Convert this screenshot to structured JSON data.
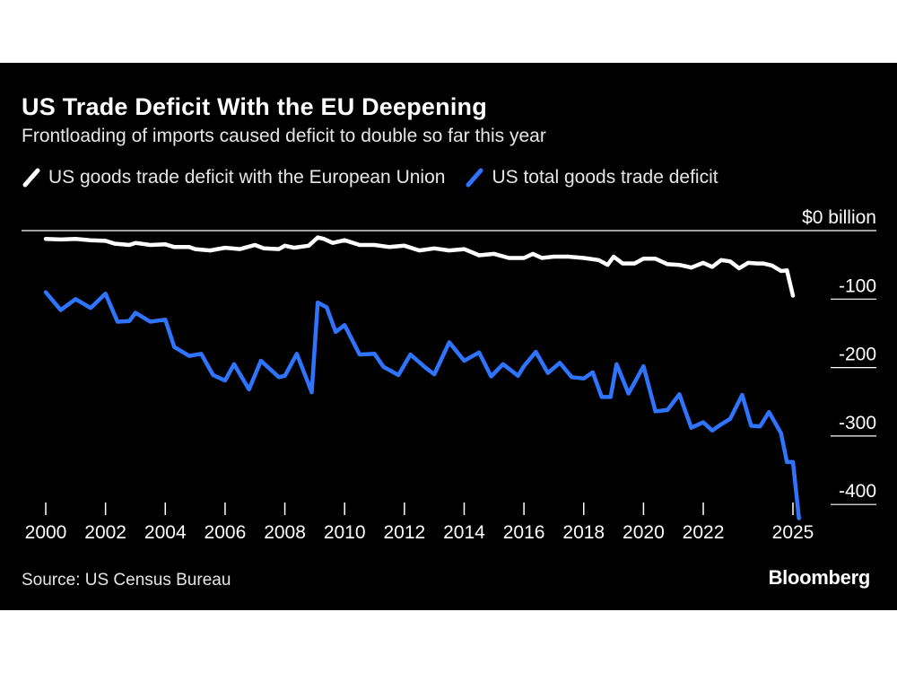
{
  "chart_data": {
    "type": "line",
    "title": "US Trade Deficit With the EU Deepening",
    "subtitle": "Frontloading of imports caused deficit to double so far this year",
    "y_unit_label": "$0 billion",
    "ylim": [
      -400,
      0
    ],
    "xlim": [
      2000,
      2025
    ],
    "y_ticks": [
      {
        "value": 0,
        "label": "$0 billion"
      },
      {
        "value": -100,
        "label": "-100"
      },
      {
        "value": -200,
        "label": "-200"
      },
      {
        "value": -300,
        "label": "-300"
      },
      {
        "value": -400,
        "label": "-400"
      }
    ],
    "x_ticks": [
      {
        "value": 2000,
        "label": "2000"
      },
      {
        "value": 2002,
        "label": "2002"
      },
      {
        "value": 2004,
        "label": "2004"
      },
      {
        "value": 2006,
        "label": "2006"
      },
      {
        "value": 2008,
        "label": "2008"
      },
      {
        "value": 2010,
        "label": "2010"
      },
      {
        "value": 2012,
        "label": "2012"
      },
      {
        "value": 2014,
        "label": "2014"
      },
      {
        "value": 2016,
        "label": "2016"
      },
      {
        "value": 2018,
        "label": "2018"
      },
      {
        "value": 2020,
        "label": "2020"
      },
      {
        "value": 2022,
        "label": "2022"
      },
      {
        "value": 2025,
        "label": "2025"
      }
    ],
    "series": [
      {
        "name": "US goods trade deficit with the European Union",
        "color": "#ffffff",
        "points": [
          [
            2000.0,
            -12
          ],
          [
            2000.5,
            -13
          ],
          [
            2001.0,
            -12
          ],
          [
            2001.5,
            -14
          ],
          [
            2002.0,
            -15
          ],
          [
            2002.3,
            -19
          ],
          [
            2002.8,
            -21
          ],
          [
            2003.0,
            -18
          ],
          [
            2003.5,
            -21
          ],
          [
            2004.0,
            -20
          ],
          [
            2004.3,
            -24
          ],
          [
            2004.8,
            -24
          ],
          [
            2005.0,
            -27
          ],
          [
            2005.5,
            -29
          ],
          [
            2006.0,
            -25
          ],
          [
            2006.5,
            -27
          ],
          [
            2007.0,
            -21
          ],
          [
            2007.3,
            -26
          ],
          [
            2007.8,
            -27
          ],
          [
            2008.0,
            -22
          ],
          [
            2008.3,
            -25
          ],
          [
            2008.8,
            -22
          ],
          [
            2009.1,
            -10
          ],
          [
            2009.3,
            -12
          ],
          [
            2009.6,
            -18
          ],
          [
            2010.0,
            -14
          ],
          [
            2010.5,
            -21
          ],
          [
            2011.0,
            -21
          ],
          [
            2011.5,
            -24
          ],
          [
            2012.0,
            -22
          ],
          [
            2012.5,
            -29
          ],
          [
            2013.0,
            -26
          ],
          [
            2013.5,
            -29
          ],
          [
            2014.0,
            -27
          ],
          [
            2014.5,
            -36
          ],
          [
            2015.0,
            -34
          ],
          [
            2015.5,
            -40
          ],
          [
            2016.0,
            -40
          ],
          [
            2016.3,
            -34
          ],
          [
            2016.6,
            -40
          ],
          [
            2017.0,
            -38
          ],
          [
            2017.5,
            -38
          ],
          [
            2018.0,
            -40
          ],
          [
            2018.5,
            -43
          ],
          [
            2018.8,
            -50
          ],
          [
            2019.0,
            -38
          ],
          [
            2019.3,
            -48
          ],
          [
            2019.7,
            -48
          ],
          [
            2020.0,
            -41
          ],
          [
            2020.4,
            -41
          ],
          [
            2020.8,
            -49
          ],
          [
            2021.2,
            -50
          ],
          [
            2021.6,
            -54
          ],
          [
            2022.0,
            -47
          ],
          [
            2022.3,
            -53
          ],
          [
            2022.6,
            -43
          ],
          [
            2022.9,
            -45
          ],
          [
            2023.2,
            -55
          ],
          [
            2023.5,
            -47
          ],
          [
            2023.8,
            -48
          ],
          [
            2024.0,
            -48
          ],
          [
            2024.3,
            -51
          ],
          [
            2024.6,
            -59
          ],
          [
            2024.8,
            -58
          ],
          [
            2025.0,
            -95
          ]
        ]
      },
      {
        "name": "US total goods trade deficit",
        "color": "#2f74ff",
        "points": [
          [
            2000.0,
            -90
          ],
          [
            2000.5,
            -116
          ],
          [
            2001.0,
            -100
          ],
          [
            2001.5,
            -113
          ],
          [
            2002.0,
            -92
          ],
          [
            2002.4,
            -133
          ],
          [
            2002.8,
            -132
          ],
          [
            2003.0,
            -120
          ],
          [
            2003.5,
            -133
          ],
          [
            2004.0,
            -130
          ],
          [
            2004.3,
            -170
          ],
          [
            2004.8,
            -183
          ],
          [
            2005.2,
            -180
          ],
          [
            2005.6,
            -211
          ],
          [
            2006.0,
            -219
          ],
          [
            2006.3,
            -195
          ],
          [
            2006.8,
            -232
          ],
          [
            2007.2,
            -190
          ],
          [
            2007.8,
            -214
          ],
          [
            2008.0,
            -212
          ],
          [
            2008.4,
            -180
          ],
          [
            2008.9,
            -236
          ],
          [
            2009.1,
            -105
          ],
          [
            2009.4,
            -112
          ],
          [
            2009.7,
            -148
          ],
          [
            2010.0,
            -138
          ],
          [
            2010.5,
            -181
          ],
          [
            2011.0,
            -180
          ],
          [
            2011.3,
            -199
          ],
          [
            2011.8,
            -211
          ],
          [
            2012.2,
            -181
          ],
          [
            2012.7,
            -200
          ],
          [
            2013.0,
            -210
          ],
          [
            2013.5,
            -163
          ],
          [
            2014.0,
            -190
          ],
          [
            2014.5,
            -178
          ],
          [
            2014.9,
            -213
          ],
          [
            2015.3,
            -195
          ],
          [
            2015.8,
            -212
          ],
          [
            2016.0,
            -198
          ],
          [
            2016.4,
            -177
          ],
          [
            2016.8,
            -208
          ],
          [
            2017.2,
            -193
          ],
          [
            2017.6,
            -214
          ],
          [
            2018.0,
            -216
          ],
          [
            2018.3,
            -207
          ],
          [
            2018.6,
            -243
          ],
          [
            2018.9,
            -243
          ],
          [
            2019.1,
            -195
          ],
          [
            2019.5,
            -238
          ],
          [
            2020.0,
            -198
          ],
          [
            2020.4,
            -264
          ],
          [
            2020.8,
            -262
          ],
          [
            2021.2,
            -239
          ],
          [
            2021.6,
            -288
          ],
          [
            2022.0,
            -280
          ],
          [
            2022.3,
            -292
          ],
          [
            2022.6,
            -283
          ],
          [
            2022.9,
            -275
          ],
          [
            2023.3,
            -240
          ],
          [
            2023.6,
            -285
          ],
          [
            2023.9,
            -286
          ],
          [
            2024.2,
            -265
          ],
          [
            2024.6,
            -296
          ],
          [
            2024.8,
            -338
          ],
          [
            2025.0,
            -338
          ],
          [
            2025.2,
            -420
          ]
        ]
      }
    ],
    "source": "Source: US Census Bureau",
    "brand": "Bloomberg"
  }
}
